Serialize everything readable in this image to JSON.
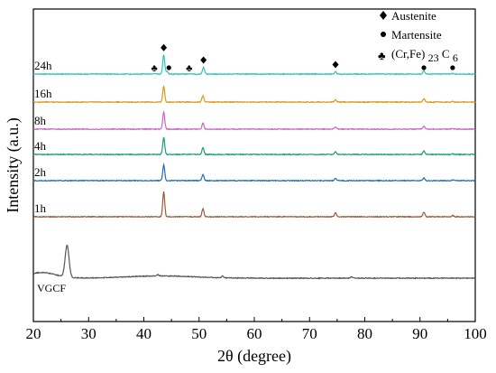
{
  "chart_data": {
    "type": "line",
    "xlabel": "2θ (degree)",
    "ylabel": "Intensity (a.u.)",
    "xlim": [
      20,
      100
    ],
    "xticks": [
      20,
      30,
      40,
      50,
      60,
      70,
      80,
      90,
      100
    ],
    "yticks_shown": false,
    "grid": false,
    "legend": {
      "placement": "top-right",
      "entries": [
        {
          "symbol": "diamond",
          "label": "Austenite"
        },
        {
          "symbol": "circle",
          "label": "Martensite"
        },
        {
          "symbol": "club",
          "label_main": "(Cr,Fe)",
          "label_sub": "23",
          "label_sub2": "C",
          "label_sub3": "6"
        }
      ]
    },
    "series": [
      {
        "name": "24h",
        "color": "#2ec4b6",
        "baseline": 6,
        "peaks": [
          [
            42.0,
            0.4
          ],
          [
            43.6,
            17
          ],
          [
            44.2,
            2.5
          ],
          [
            48.3,
            0.4
          ],
          [
            50.8,
            6
          ],
          [
            74.7,
            2
          ],
          [
            90.7,
            3
          ],
          [
            95.9,
            0.5
          ]
        ]
      },
      {
        "name": "16h",
        "color": "#d99a1a",
        "baseline": 5,
        "peaks": [
          [
            43.6,
            14
          ],
          [
            50.7,
            5.5
          ],
          [
            74.7,
            2
          ],
          [
            90.7,
            3
          ],
          [
            95.9,
            0.5
          ]
        ]
      },
      {
        "name": "8h",
        "color": "#c864c8",
        "baseline": 4,
        "peaks": [
          [
            43.6,
            15
          ],
          [
            50.7,
            5.5
          ],
          [
            74.7,
            2
          ],
          [
            90.7,
            2.5
          ],
          [
            95.9,
            0.5
          ]
        ]
      },
      {
        "name": "4h",
        "color": "#1a9f6e",
        "baseline": 3,
        "peaks": [
          [
            43.6,
            15
          ],
          [
            50.7,
            6
          ],
          [
            74.7,
            2.5
          ],
          [
            90.7,
            3
          ],
          [
            95.9,
            0.5
          ]
        ]
      },
      {
        "name": "2h",
        "color": "#1f6fb4",
        "baseline": 2,
        "peaks": [
          [
            43.6,
            14
          ],
          [
            50.7,
            5.5
          ],
          [
            74.7,
            2
          ],
          [
            90.7,
            2.5
          ],
          [
            95.9,
            0.5
          ]
        ]
      },
      {
        "name": "1h",
        "color": "#9a5a3a",
        "baseline": 1,
        "peaks": [
          [
            43.6,
            22
          ],
          [
            50.7,
            7
          ],
          [
            74.7,
            3.5
          ],
          [
            90.7,
            4
          ],
          [
            95.9,
            1
          ]
        ]
      },
      {
        "name": "VGCF",
        "color": "#555555",
        "baseline": 0,
        "peaks": [
          [
            26.1,
            28
          ],
          [
            42.5,
            1
          ],
          [
            54.3,
            1.5
          ],
          [
            77.6,
            1
          ]
        ]
      }
    ],
    "annotations": [
      {
        "x": 43.6,
        "series": "24h",
        "symbol": "diamond"
      },
      {
        "x": 50.8,
        "series": "24h",
        "symbol": "diamond"
      },
      {
        "x": 74.7,
        "series": "24h",
        "symbol": "diamond"
      },
      {
        "x": 90.7,
        "series": "24h",
        "symbol": "circle"
      },
      {
        "x": 44.2,
        "series": "24h",
        "symbol": "circle"
      },
      {
        "x": 95.9,
        "series": "24h",
        "symbol": "circle"
      },
      {
        "x": 41.9,
        "series": "24h",
        "symbol": "club"
      },
      {
        "x": 48.2,
        "series": "24h",
        "symbol": "club"
      }
    ]
  }
}
